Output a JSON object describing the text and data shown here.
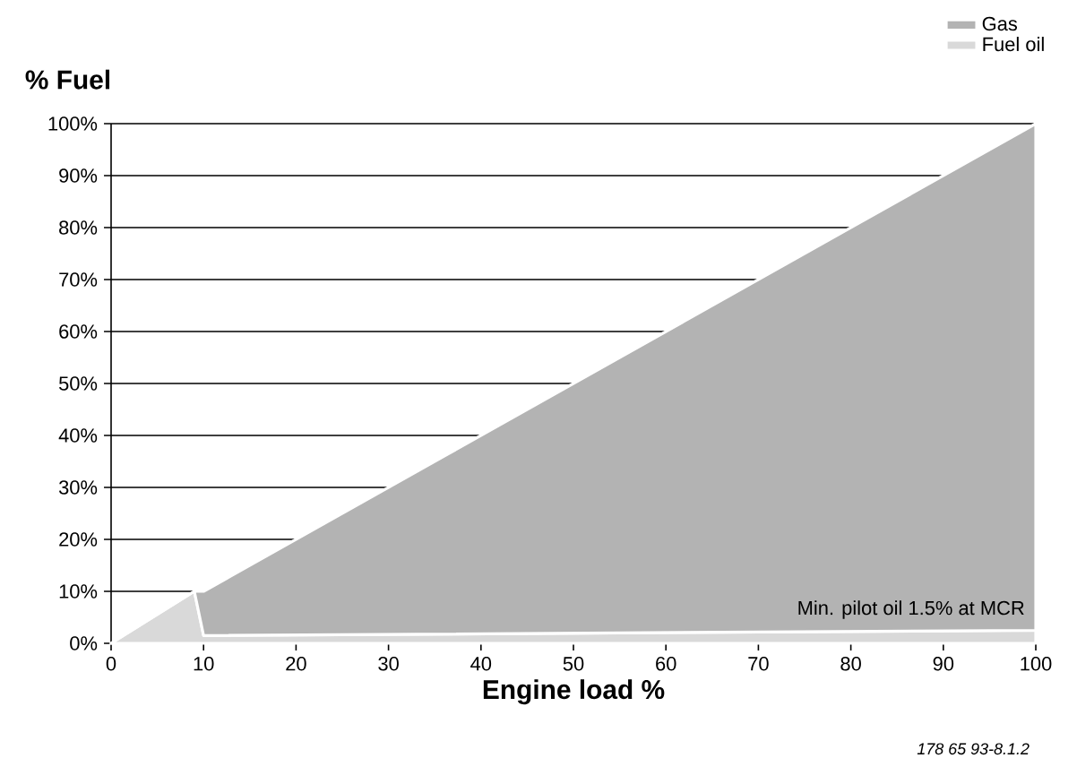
{
  "chart_data": {
    "type": "area",
    "stacked": true,
    "xlabel": "Engine load %",
    "ylabel": "% Fuel",
    "x": [
      0,
      9,
      10,
      100
    ],
    "series": [
      {
        "name": "Fuel oil",
        "color": "#d9d9d9",
        "values": [
          0,
          10,
          1.5,
          2.5
        ]
      },
      {
        "name": "Gas",
        "color": "#b3b3b3",
        "values": [
          0,
          0,
          8.5,
          97.5
        ]
      }
    ],
    "xlim": [
      0,
      100
    ],
    "ylim": [
      0,
      100
    ],
    "xticks": [
      0,
      10,
      20,
      30,
      40,
      50,
      60,
      70,
      80,
      90,
      100
    ],
    "yticks": [
      {
        "value": 0,
        "label": "0%"
      },
      {
        "value": 10,
        "label": "10%"
      },
      {
        "value": 20,
        "label": "20%"
      },
      {
        "value": 30,
        "label": "30%"
      },
      {
        "value": 40,
        "label": "40%"
      },
      {
        "value": 50,
        "label": "50%"
      },
      {
        "value": 60,
        "label": "60%"
      },
      {
        "value": 70,
        "label": "70%"
      },
      {
        "value": 80,
        "label": "80%"
      },
      {
        "value": 90,
        "label": "90%"
      },
      {
        "value": 100,
        "label": "100%"
      }
    ],
    "grid": "y",
    "legend": "top right",
    "annotations": [
      "Min. pilot oil 1.5% at MCR",
      "178 65 93-8.1.2"
    ]
  }
}
